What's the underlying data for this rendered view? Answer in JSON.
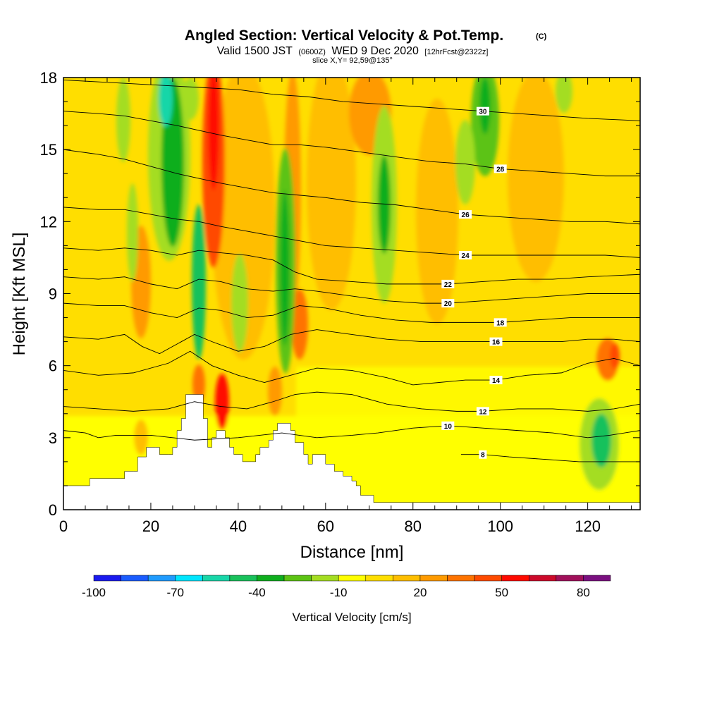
{
  "header": {
    "title": "Angled Section: Vertical Velocity & Pot.Temp.",
    "title_mark": "(C)",
    "valid_prefix": "Valid 1500 JST",
    "valid_utc": "(0600Z)",
    "valid_date": "WED 9 Dec 2020",
    "valid_fcst": "[12hrFcst@2322z]",
    "slice": "slice X,Y= 92,59@135°"
  },
  "chart_data": {
    "type": "heatmap",
    "xlabel": "Distance [nm]",
    "ylabel": "Height [Kft MSL]",
    "xlim": [
      0,
      132
    ],
    "ylim": [
      0,
      18
    ],
    "x_ticks": [
      "0",
      "20",
      "40",
      "60",
      "80",
      "100",
      "120"
    ],
    "x_tick_values": [
      0,
      20,
      40,
      60,
      80,
      100,
      120
    ],
    "y_ticks": [
      "0",
      "3",
      "6",
      "9",
      "12",
      "15",
      "18"
    ],
    "y_tick_values": [
      0,
      3,
      6,
      9,
      12,
      15,
      18
    ],
    "x_minor_step": 5,
    "y_minor_step": 1,
    "colorbar": {
      "label": "Vertical Velocity [cm/s]",
      "tick_labels": [
        "-100",
        "-70",
        "-40",
        "-10",
        "20",
        "50",
        "80"
      ],
      "tick_values": [
        -100,
        -70,
        -40,
        -10,
        20,
        50,
        80
      ],
      "min": -100,
      "max": 90,
      "step": 10,
      "colors": [
        "#1a1aee",
        "#1a5cff",
        "#1f9bff",
        "#00e5ff",
        "#18d6a8",
        "#19c15b",
        "#0fae1e",
        "#5cc313",
        "#a4dd21",
        "#ffff00",
        "#ffde00",
        "#ffbe00",
        "#ff9a00",
        "#ff7300",
        "#ff4a00",
        "#ff0a00",
        "#cc0a2a",
        "#a0105a",
        "#7a1080"
      ]
    },
    "terrain": [
      [
        0,
        1
      ],
      [
        5,
        1
      ],
      [
        6,
        1.3
      ],
      [
        13,
        1.3
      ],
      [
        14,
        1.6
      ],
      [
        16,
        1.6
      ],
      [
        17,
        2.2
      ],
      [
        19,
        2.6
      ],
      [
        21,
        2.6
      ],
      [
        22,
        2.3
      ],
      [
        24,
        2.3
      ],
      [
        25,
        2.6
      ],
      [
        26,
        3.3
      ],
      [
        27,
        3.8
      ],
      [
        28,
        4.8
      ],
      [
        31,
        4.8
      ],
      [
        32,
        3.8
      ],
      [
        33,
        2.6
      ],
      [
        34,
        3
      ],
      [
        35,
        3.3
      ],
      [
        37,
        3
      ],
      [
        38,
        2.6
      ],
      [
        39,
        2.3
      ],
      [
        41,
        2
      ],
      [
        43,
        2
      ],
      [
        44,
        2.3
      ],
      [
        45,
        2.6
      ],
      [
        47,
        2.9
      ],
      [
        48,
        3.3
      ],
      [
        49,
        3.6
      ],
      [
        51,
        3.6
      ],
      [
        52,
        3.3
      ],
      [
        53,
        2.8
      ],
      [
        55,
        2.3
      ],
      [
        56,
        1.9
      ],
      [
        57,
        2.3
      ],
      [
        59,
        2.3
      ],
      [
        60,
        1.9
      ],
      [
        62,
        1.6
      ],
      [
        64,
        1.4
      ],
      [
        66,
        1.2
      ],
      [
        67,
        1
      ],
      [
        68,
        0.6
      ],
      [
        70,
        0.6
      ],
      [
        71,
        0.3
      ],
      [
        132,
        0.3
      ]
    ],
    "contours": [
      {
        "value": 8,
        "label": "8",
        "label_x": 96,
        "pts": [
          [
            91,
            2.3
          ],
          [
            96,
            2.3
          ],
          [
            102,
            2.2
          ],
          [
            110,
            2.1
          ],
          [
            118,
            2
          ],
          [
            125,
            2
          ],
          [
            132,
            2
          ]
        ]
      },
      {
        "value": 10,
        "label": "10",
        "label_x": 88,
        "pts": [
          [
            0,
            3.3
          ],
          [
            5,
            3.2
          ],
          [
            8,
            3
          ],
          [
            12,
            3.1
          ],
          [
            20,
            3.1
          ],
          [
            30,
            2.9
          ],
          [
            40,
            3
          ],
          [
            50,
            3.2
          ],
          [
            58,
            3
          ],
          [
            66,
            3.1
          ],
          [
            72,
            3.2
          ],
          [
            80,
            3.4
          ],
          [
            88,
            3.5
          ],
          [
            96,
            3.4
          ],
          [
            104,
            3.3
          ],
          [
            112,
            3.2
          ],
          [
            120,
            3
          ],
          [
            125,
            3.1
          ],
          [
            132,
            3.3
          ]
        ]
      },
      {
        "value": 12,
        "label": "12",
        "label_x": 96,
        "pts": [
          [
            0,
            4.3
          ],
          [
            8,
            4.2
          ],
          [
            16,
            4.1
          ],
          [
            24,
            4.2
          ],
          [
            30,
            4.5
          ],
          [
            36,
            4.3
          ],
          [
            42,
            4.2
          ],
          [
            48,
            4.5
          ],
          [
            53,
            4.8
          ],
          [
            58,
            4.9
          ],
          [
            66,
            4.8
          ],
          [
            74,
            4.4
          ],
          [
            82,
            4.2
          ],
          [
            90,
            4.1
          ],
          [
            96,
            4.1
          ],
          [
            104,
            4.2
          ],
          [
            112,
            4.2
          ],
          [
            120,
            4.1
          ],
          [
            126,
            4.2
          ],
          [
            132,
            4.4
          ]
        ]
      },
      {
        "value": 14,
        "label": "14",
        "label_x": 99,
        "pts": [
          [
            0,
            5.8
          ],
          [
            8,
            5.6
          ],
          [
            16,
            5.7
          ],
          [
            24,
            6.1
          ],
          [
            29,
            6.6
          ],
          [
            34,
            6
          ],
          [
            40,
            5.6
          ],
          [
            46,
            5.3
          ],
          [
            52,
            5.6
          ],
          [
            58,
            5.9
          ],
          [
            66,
            5.8
          ],
          [
            74,
            5.5
          ],
          [
            80,
            5.2
          ],
          [
            86,
            5.3
          ],
          [
            92,
            5.4
          ],
          [
            99,
            5.4
          ],
          [
            106,
            5.6
          ],
          [
            114,
            5.7
          ],
          [
            120,
            6.1
          ],
          [
            126,
            6.3
          ],
          [
            132,
            6
          ]
        ]
      },
      {
        "value": 16,
        "label": "16",
        "label_x": 99,
        "pts": [
          [
            0,
            7.2
          ],
          [
            8,
            7.1
          ],
          [
            14,
            7.3
          ],
          [
            18,
            6.8
          ],
          [
            22,
            6.5
          ],
          [
            26,
            6.9
          ],
          [
            30,
            7.3
          ],
          [
            34,
            7
          ],
          [
            40,
            6.6
          ],
          [
            46,
            6.8
          ],
          [
            52,
            7.3
          ],
          [
            58,
            7.5
          ],
          [
            66,
            7.3
          ],
          [
            74,
            7.1
          ],
          [
            82,
            7
          ],
          [
            90,
            7
          ],
          [
            99,
            7
          ],
          [
            106,
            7
          ],
          [
            114,
            7
          ],
          [
            120,
            7.1
          ],
          [
            126,
            7.1
          ],
          [
            132,
            7
          ]
        ]
      },
      {
        "value": 18,
        "label": "18",
        "label_x": 100,
        "pts": [
          [
            0,
            8.6
          ],
          [
            8,
            8.5
          ],
          [
            14,
            8.5
          ],
          [
            20,
            8.2
          ],
          [
            26,
            8
          ],
          [
            31,
            8.4
          ],
          [
            36,
            8.3
          ],
          [
            42,
            8
          ],
          [
            48,
            8.1
          ],
          [
            54,
            8.5
          ],
          [
            60,
            8.4
          ],
          [
            68,
            8.1
          ],
          [
            76,
            7.9
          ],
          [
            84,
            7.8
          ],
          [
            92,
            7.8
          ],
          [
            100,
            7.8
          ],
          [
            108,
            7.9
          ],
          [
            116,
            8
          ],
          [
            124,
            8
          ],
          [
            132,
            8
          ]
        ]
      },
      {
        "value": 20,
        "label": "20",
        "label_x": 88,
        "pts": [
          [
            0,
            9.7
          ],
          [
            8,
            9.6
          ],
          [
            14,
            9.7
          ],
          [
            20,
            9.4
          ],
          [
            26,
            9.2
          ],
          [
            31,
            9.6
          ],
          [
            36,
            9.5
          ],
          [
            42,
            9.2
          ],
          [
            48,
            9.1
          ],
          [
            53,
            9.2
          ],
          [
            58,
            9.1
          ],
          [
            66,
            8.9
          ],
          [
            74,
            8.7
          ],
          [
            82,
            8.6
          ],
          [
            88,
            8.6
          ],
          [
            96,
            8.7
          ],
          [
            104,
            8.8
          ],
          [
            112,
            8.9
          ],
          [
            120,
            9
          ],
          [
            132,
            9
          ]
        ]
      },
      {
        "value": 22,
        "label": "22",
        "label_x": 88,
        "pts": [
          [
            0,
            10.9
          ],
          [
            8,
            10.8
          ],
          [
            14,
            10.9
          ],
          [
            20,
            10.8
          ],
          [
            26,
            10.6
          ],
          [
            31,
            10.8
          ],
          [
            36,
            10.7
          ],
          [
            42,
            10.6
          ],
          [
            48,
            10.4
          ],
          [
            53,
            9.9
          ],
          [
            58,
            9.6
          ],
          [
            66,
            9.5
          ],
          [
            74,
            9.4
          ],
          [
            82,
            9.4
          ],
          [
            88,
            9.4
          ],
          [
            96,
            9.5
          ],
          [
            104,
            9.6
          ],
          [
            112,
            9.6
          ],
          [
            120,
            9.7
          ],
          [
            132,
            9.8
          ]
        ]
      },
      {
        "value": 24,
        "label": "24",
        "label_x": 92,
        "pts": [
          [
            0,
            12.6
          ],
          [
            8,
            12.5
          ],
          [
            14,
            12.5
          ],
          [
            20,
            12.3
          ],
          [
            26,
            12.1
          ],
          [
            31,
            12
          ],
          [
            36,
            11.8
          ],
          [
            42,
            11.6
          ],
          [
            48,
            11.4
          ],
          [
            54,
            11.2
          ],
          [
            60,
            11
          ],
          [
            68,
            10.9
          ],
          [
            76,
            10.8
          ],
          [
            84,
            10.7
          ],
          [
            92,
            10.6
          ],
          [
            100,
            10.6
          ],
          [
            108,
            10.6
          ],
          [
            116,
            10.6
          ],
          [
            124,
            10.6
          ],
          [
            132,
            10.5
          ]
        ]
      },
      {
        "value": 26,
        "label": "26",
        "label_x": 92,
        "pts": [
          [
            0,
            15
          ],
          [
            8,
            14.8
          ],
          [
            14,
            14.6
          ],
          [
            20,
            14.3
          ],
          [
            26,
            14
          ],
          [
            31,
            13.8
          ],
          [
            36,
            13.6
          ],
          [
            42,
            13.4
          ],
          [
            48,
            13.2
          ],
          [
            54,
            13.1
          ],
          [
            60,
            13
          ],
          [
            68,
            12.8
          ],
          [
            76,
            12.7
          ],
          [
            84,
            12.5
          ],
          [
            92,
            12.3
          ],
          [
            100,
            12.2
          ],
          [
            108,
            12.1
          ],
          [
            116,
            12
          ],
          [
            124,
            12
          ],
          [
            132,
            11.9
          ]
        ]
      },
      {
        "value": 28,
        "label": "28",
        "label_x": 100,
        "pts": [
          [
            0,
            16.6
          ],
          [
            8,
            16.5
          ],
          [
            14,
            16.4
          ],
          [
            20,
            16.2
          ],
          [
            26,
            16
          ],
          [
            31,
            15.8
          ],
          [
            36,
            15.6
          ],
          [
            42,
            15.4
          ],
          [
            48,
            15.2
          ],
          [
            54,
            15.2
          ],
          [
            60,
            15.1
          ],
          [
            68,
            14.9
          ],
          [
            76,
            14.7
          ],
          [
            84,
            14.5
          ],
          [
            92,
            14.4
          ],
          [
            100,
            14.2
          ],
          [
            108,
            14.1
          ],
          [
            116,
            14
          ],
          [
            124,
            13.9
          ],
          [
            132,
            13.9
          ]
        ]
      },
      {
        "value": 30,
        "label": "30",
        "label_x": 96,
        "pts": [
          [
            0,
            17.9
          ],
          [
            10,
            17.8
          ],
          [
            20,
            17.7
          ],
          [
            30,
            17.6
          ],
          [
            40,
            17.5
          ],
          [
            48,
            17.3
          ],
          [
            56,
            17.2
          ],
          [
            64,
            17
          ],
          [
            72,
            16.9
          ],
          [
            80,
            16.8
          ],
          [
            88,
            16.7
          ],
          [
            96,
            16.6
          ],
          [
            104,
            16.5
          ],
          [
            112,
            16.4
          ],
          [
            120,
            16.3
          ],
          [
            132,
            16.2
          ]
        ]
      }
    ]
  }
}
